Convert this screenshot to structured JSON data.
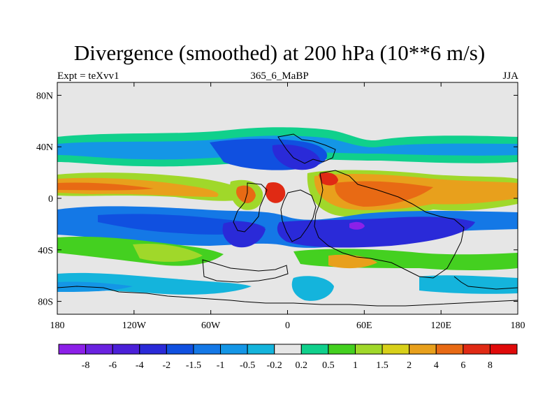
{
  "chart_data": {
    "type": "heatmap",
    "title": "Divergence (smoothed) at 200 hPa (10**6 m/s)",
    "subtitle_left": "Expt = teXvv1",
    "subtitle_center": "365_6_MaBP",
    "subtitle_right": "JJA",
    "x_ticks": [
      "180",
      "120W",
      "60W",
      "0",
      "60E",
      "120E",
      "180"
    ],
    "y_ticks": [
      "80N",
      "40N",
      "0",
      "40S",
      "80S"
    ],
    "xlim": [
      -180,
      180
    ],
    "ylim": [
      -90,
      90
    ],
    "colorbar": {
      "labels": [
        "-8",
        "-6",
        "-4",
        "-2",
        "-1.5",
        "-1",
        "-0.5",
        "-0.2",
        "0.2",
        "0.5",
        "1",
        "1.5",
        "2",
        "4",
        "6",
        "8"
      ],
      "colors": [
        "#8c20e8",
        "#6a22e0",
        "#4b20d8",
        "#2a2ad8",
        "#1050e0",
        "#1478e6",
        "#1496e6",
        "#14b4dc",
        "#e6e6e6",
        "#10d08c",
        "#44d020",
        "#a0d82a",
        "#d8d01a",
        "#e8a01c",
        "#e86a14",
        "#e02a14",
        "#e00a0a"
      ]
    }
  }
}
